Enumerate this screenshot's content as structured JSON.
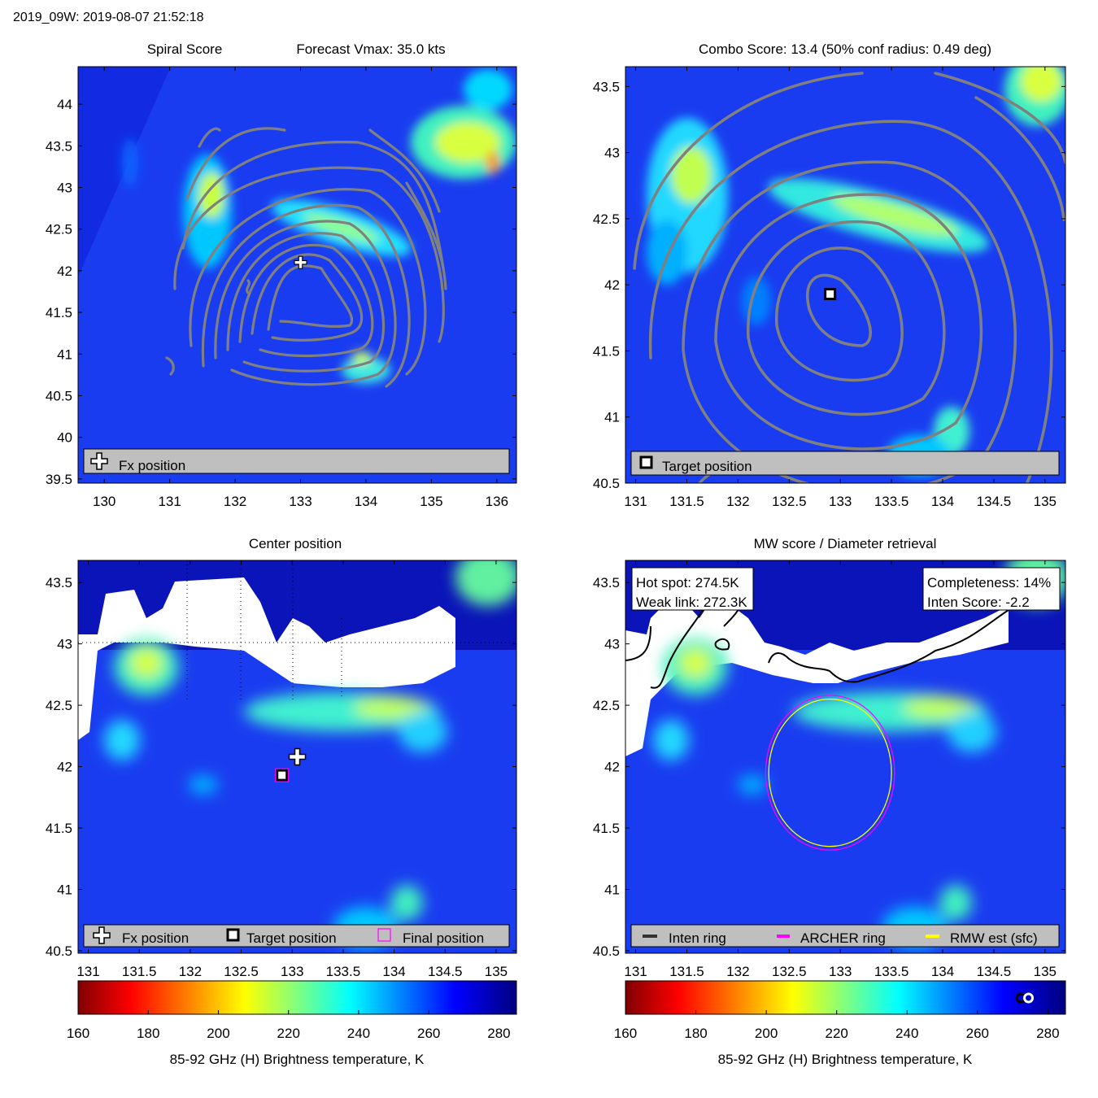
{
  "header": {
    "title": "2019_09W: 2019-08-07 21:52:18"
  },
  "colormap": {
    "stops": [
      "#800000",
      "#ff0000",
      "#ffff00",
      "#00ffff",
      "#0000ff",
      "#000080"
    ],
    "contour_color": "#808080",
    "legend_bg": "#bfbfbf",
    "cloudfree_color": "#ffffff"
  },
  "chart_data": [
    {
      "id": "spiral",
      "type": "heatmap",
      "title_left": "Spiral Score",
      "title_right": "Forecast Vmax: 35.0 kts",
      "title": "",
      "xlim": [
        129.6,
        136.3
      ],
      "ylim": [
        39.45,
        44.45
      ],
      "xticks": [
        "130",
        "131",
        "132",
        "133",
        "134",
        "135",
        "136"
      ],
      "yticks": [
        "39.5",
        "40",
        "40.5",
        "41",
        "41.5",
        "42",
        "42.5",
        "43",
        "43.5",
        "44"
      ],
      "markers": [
        {
          "label": "Fx position",
          "x": 133.0,
          "y": 42.1
        }
      ],
      "legend": {
        "position": "bottom",
        "items": [
          "Fx position"
        ]
      }
    },
    {
      "id": "combo",
      "type": "heatmap",
      "title": "Combo Score: 13.4  (50% conf radius: 0.49 deg)",
      "xlim": [
        130.9,
        135.2
      ],
      "ylim": [
        40.5,
        43.65
      ],
      "xticks": [
        "131",
        "131.5",
        "132",
        "132.5",
        "133",
        "133.5",
        "134",
        "134.5",
        "135"
      ],
      "yticks": [
        "40.5",
        "41",
        "41.5",
        "42",
        "42.5",
        "43",
        "43.5"
      ],
      "markers": [
        {
          "label": "Target position",
          "x": 132.9,
          "y": 41.93
        }
      ],
      "legend": {
        "position": "bottom",
        "items": [
          "Target position"
        ]
      }
    },
    {
      "id": "center",
      "type": "heatmap",
      "title": "Center position",
      "xlim": [
        130.9,
        135.2
      ],
      "ylim": [
        40.48,
        43.68
      ],
      "xticks": [
        "131",
        "131.5",
        "132",
        "132.5",
        "133",
        "133.5",
        "134",
        "134.5",
        "135"
      ],
      "yticks": [
        "40.5",
        "41",
        "41.5",
        "42",
        "42.5",
        "43",
        "43.5"
      ],
      "markers": [
        {
          "label": "Fx position",
          "x": 133.05,
          "y": 42.08
        },
        {
          "label": "Target position",
          "x": 132.9,
          "y": 41.93
        },
        {
          "label": "Final position",
          "x": 132.9,
          "y": 41.93
        }
      ],
      "legend": {
        "position": "bottom",
        "items": [
          "Fx position",
          "Target position",
          "Final position"
        ]
      }
    },
    {
      "id": "mwscore",
      "type": "heatmap",
      "title": "MW score / Diameter retrieval",
      "xlim": [
        130.9,
        135.2
      ],
      "ylim": [
        40.48,
        43.68
      ],
      "xticks": [
        "131",
        "131.5",
        "132",
        "132.5",
        "133",
        "133.5",
        "134",
        "134.5",
        "135"
      ],
      "yticks": [
        "40.5",
        "41",
        "41.5",
        "42",
        "42.5",
        "43",
        "43.5"
      ],
      "annotations": [
        "Hot spot: 274.5K",
        "Weak link: 272.3K",
        "Completeness: 14%",
        "Inten Score: -2.2"
      ],
      "rings": [
        {
          "label": "ARCHER ring",
          "color": "#ff00ff",
          "center_x": 132.9,
          "center_y": 41.95,
          "radius_deg": 0.63
        },
        {
          "label": "RMW est (sfc)",
          "color": "#ffff00",
          "center_x": 132.9,
          "center_y": 41.95,
          "radius_deg": 0.6
        }
      ],
      "legend": {
        "position": "bottom",
        "items": [
          "Inten ring",
          "ARCHER ring",
          "RMW est (sfc)"
        ],
        "colors": [
          "#333333",
          "#ff00ff",
          "#ffff00"
        ]
      }
    }
  ],
  "colorbars": [
    {
      "ticks": [
        "160",
        "180",
        "200",
        "220",
        "240",
        "260",
        "280"
      ],
      "range": [
        160,
        285
      ],
      "label": "85-92 GHz (H) Brightness temperature, K"
    },
    {
      "ticks": [
        "160",
        "180",
        "200",
        "220",
        "240",
        "260",
        "280"
      ],
      "range": [
        160,
        285
      ],
      "label": "85-92 GHz (H) Brightness temperature, K",
      "markers": [
        {
          "value": 272.3,
          "style": "ring-black"
        },
        {
          "value": 274.5,
          "style": "ring-white"
        }
      ]
    }
  ]
}
